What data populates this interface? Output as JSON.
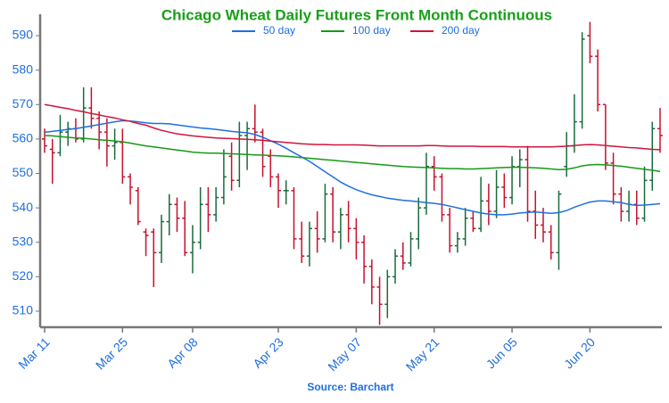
{
  "chart_data": {
    "type": "ohlc",
    "title": "Chicago Wheat Daily Futures Front Month Continuous",
    "source": "Source: Barchart",
    "categories": [
      "Mar 11",
      null,
      null,
      null,
      null,
      null,
      null,
      null,
      null,
      null,
      "Mar 25",
      null,
      null,
      null,
      null,
      null,
      null,
      null,
      null,
      "Apr 08",
      null,
      null,
      null,
      null,
      null,
      null,
      null,
      null,
      null,
      null,
      "Apr 23",
      null,
      null,
      null,
      null,
      null,
      null,
      null,
      null,
      null,
      "May 07",
      null,
      null,
      null,
      null,
      null,
      null,
      null,
      null,
      null,
      "May 21",
      null,
      null,
      null,
      null,
      null,
      null,
      null,
      null,
      null,
      "Jun 05",
      null,
      null,
      null,
      null,
      null,
      null,
      null,
      null,
      null,
      "Jun 20",
      null,
      null,
      null,
      null,
      null,
      null,
      null,
      null,
      null
    ],
    "open": [
      560,
      557,
      556,
      562,
      563,
      560,
      569,
      566,
      562,
      558,
      559,
      549,
      545,
      533,
      533,
      527,
      536,
      541,
      537,
      527,
      530,
      541,
      538,
      543,
      555,
      548,
      561,
      563,
      562,
      555,
      549,
      545,
      545,
      531,
      526,
      534,
      531,
      544,
      533,
      538,
      534,
      530,
      523,
      517,
      512,
      520,
      526,
      524,
      531,
      540,
      552,
      549,
      538,
      529,
      531,
      537,
      534,
      542,
      539,
      546,
      543,
      552,
      554,
      539,
      535,
      533,
      527,
      552,
      558,
      565,
      590,
      584,
      570,
      553,
      544,
      539,
      541,
      537,
      548,
      563
    ],
    "high": [
      563,
      560,
      567,
      565,
      566,
      575,
      575,
      568,
      566,
      563,
      563,
      550,
      546,
      534,
      534,
      538,
      544,
      543,
      542,
      535,
      546,
      546,
      546,
      557,
      559,
      565,
      565,
      570,
      563,
      557,
      550,
      548,
      546,
      536,
      536,
      539,
      547,
      546,
      540,
      542,
      537,
      532,
      525,
      520,
      522,
      528,
      530,
      533,
      543,
      556,
      555,
      550,
      540,
      533,
      540,
      539,
      549,
      547,
      551,
      550,
      555,
      557,
      558,
      545,
      540,
      535,
      545,
      562,
      573,
      591,
      594,
      586,
      570,
      556,
      546,
      545,
      545,
      552,
      565,
      569
    ],
    "low": [
      556,
      547,
      555,
      558,
      559,
      559,
      563,
      557,
      552,
      554,
      547,
      541,
      535,
      526,
      517,
      524,
      532,
      533,
      526,
      521,
      528,
      533,
      536,
      541,
      545,
      546,
      551,
      559,
      549,
      546,
      540,
      541,
      528,
      524,
      523,
      527,
      530,
      530,
      528,
      530,
      525,
      518,
      512,
      506,
      508,
      518,
      522,
      523,
      528,
      538,
      545,
      536,
      527,
      527,
      529,
      533,
      533,
      535,
      537,
      540,
      541,
      546,
      536,
      531,
      530,
      525,
      522,
      549,
      556,
      563,
      582,
      568,
      551,
      541,
      536,
      536,
      535,
      536,
      545,
      556
    ],
    "close": [
      558,
      556,
      562,
      563,
      560,
      569,
      566,
      562,
      558,
      559,
      549,
      546,
      536,
      532,
      527,
      536,
      541,
      537,
      527,
      530,
      541,
      538,
      543,
      549,
      548,
      561,
      563,
      562,
      552,
      549,
      545,
      545,
      531,
      526,
      534,
      531,
      544,
      533,
      538,
      534,
      530,
      523,
      517,
      512,
      520,
      526,
      524,
      531,
      540,
      552,
      549,
      538,
      529,
      531,
      537,
      534,
      542,
      539,
      546,
      543,
      552,
      554,
      539,
      535,
      533,
      527,
      544,
      558,
      565,
      589,
      584,
      570,
      553,
      544,
      539,
      541,
      537,
      548,
      563,
      561
    ],
    "up_color": "#1a6b3c",
    "down_color": "#c8102e",
    "series": [
      {
        "name": "50 day",
        "color": "#1f6fe0",
        "values": [
          562,
          562.2,
          562.5,
          562.8,
          563,
          563.4,
          563.8,
          564.2,
          564.6,
          565,
          565.3,
          565.2,
          565,
          564.7,
          564.5,
          564.5,
          564.4,
          564.1,
          563.8,
          563.5,
          563.2,
          563,
          562.8,
          562.5,
          562.2,
          562,
          561.8,
          561.3,
          560.5,
          559.5,
          558.5,
          557.3,
          556,
          554.8,
          553.5,
          552,
          550.5,
          549,
          547.5,
          546.3,
          545.3,
          544.5,
          543.8,
          543.3,
          542.8,
          542.5,
          542.2,
          542,
          541.8,
          541.5,
          541.3,
          541,
          540.5,
          540,
          539.5,
          539,
          538.5,
          538.2,
          538,
          538,
          538.2,
          538.5,
          538.7,
          538.8,
          538.6,
          538.4,
          538.6,
          539.2,
          540.2,
          541,
          541.7,
          542,
          542,
          541.8,
          541.5,
          541,
          540.7,
          540.8,
          541,
          541.2
        ]
      },
      {
        "name": "100 day",
        "color": "#169a16",
        "values": [
          561,
          560.9,
          560.7,
          560.5,
          560.3,
          560.2,
          560,
          559.8,
          559.6,
          559.4,
          559.2,
          558.8,
          558.4,
          558,
          557.7,
          557.4,
          557.1,
          556.8,
          556.5,
          556.2,
          556,
          555.9,
          555.9,
          555.8,
          555.7,
          555.6,
          555.5,
          555.4,
          555.3,
          555.2,
          555.1,
          555,
          554.8,
          554.6,
          554.4,
          554.2,
          554,
          553.8,
          553.6,
          553.4,
          553.2,
          553,
          552.8,
          552.6,
          552.4,
          552.2,
          552,
          551.9,
          551.8,
          551.7,
          551.6,
          551.5,
          551.4,
          551.4,
          551.3,
          551.3,
          551.4,
          551.5,
          551.6,
          551.7,
          551.8,
          551.8,
          551.7,
          551.6,
          551.5,
          551.3,
          551.1,
          551.2,
          551.6,
          552.2,
          552.5,
          552.6,
          552.5,
          552.3,
          552.1,
          551.8,
          551.5,
          551.2,
          550.9,
          550.6
        ]
      },
      {
        "name": "200 day",
        "color": "#d0143c",
        "values": [
          570,
          569.6,
          569.2,
          568.8,
          568.3,
          567.9,
          567.4,
          567,
          566.5,
          566.1,
          565.6,
          565.1,
          564.5,
          564,
          563.2,
          562.5,
          562,
          561.5,
          561.2,
          560.9,
          560.7,
          560.5,
          560.3,
          560.2,
          560.1,
          560,
          559.9,
          559.8,
          559.6,
          559.4,
          559.2,
          559,
          558.8,
          558.6,
          558.5,
          558.4,
          558.4,
          558.3,
          558.3,
          558.3,
          558.3,
          558.2,
          558.1,
          558,
          558,
          558,
          558,
          558,
          558,
          558.1,
          558.1,
          558,
          557.9,
          557.9,
          557.9,
          557.9,
          557.8,
          557.8,
          557.8,
          557.8,
          557.7,
          557.7,
          557.7,
          557.7,
          557.7,
          557.7,
          557.8,
          557.9,
          558.1,
          558.3,
          558.4,
          558.3,
          558.1,
          557.9,
          557.7,
          557.5,
          557.4,
          557.2,
          557,
          556.9
        ]
      }
    ],
    "ylim": [
      505.6,
      595.7
    ],
    "yticks": [
      510,
      520,
      530,
      540,
      550,
      560,
      570,
      580,
      590
    ],
    "grid": false
  }
}
